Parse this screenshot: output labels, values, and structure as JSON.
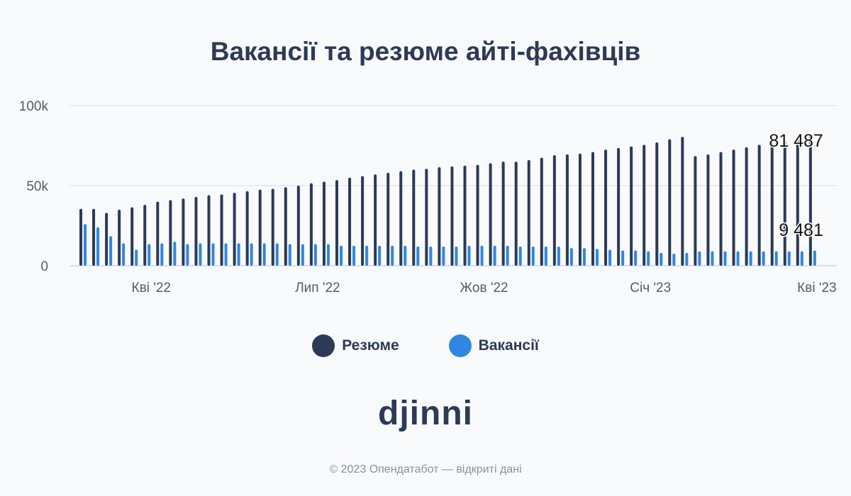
{
  "chart_data": {
    "type": "bar",
    "title": "Вакансії та резюме айті-фахівців",
    "xlabel": "",
    "ylabel": "",
    "ylim": [
      0,
      100000
    ],
    "y_ticks": [
      {
        "value": 0,
        "label": "0"
      },
      {
        "value": 50000,
        "label": "50k"
      },
      {
        "value": 100000,
        "label": "100k"
      }
    ],
    "x_ticks": [
      {
        "index": 5.5,
        "label": "Кві '22"
      },
      {
        "index": 18.5,
        "label": "Лип '22"
      },
      {
        "index": 31.5,
        "label": "Жов '22"
      },
      {
        "index": 44.5,
        "label": "Січ '23"
      },
      {
        "index": 57.5,
        "label": "Кві '23"
      }
    ],
    "grid": true,
    "legend_position": "bottom",
    "series": [
      {
        "name": "Резюме",
        "color": "#2c3a57",
        "values": [
          35500,
          35500,
          33000,
          35000,
          36500,
          38000,
          40000,
          41000,
          42000,
          43000,
          44000,
          44500,
          45500,
          46500,
          47500,
          48000,
          49000,
          50000,
          51500,
          52500,
          53500,
          55000,
          56000,
          57000,
          58000,
          59000,
          60000,
          60500,
          61500,
          62000,
          62500,
          63000,
          64000,
          65000,
          65000,
          66000,
          67500,
          69000,
          69500,
          70000,
          71000,
          72500,
          73500,
          74500,
          75500,
          77000,
          79000,
          80500,
          68500,
          69500,
          71000,
          72500,
          74000,
          75500,
          76500,
          78000,
          79000,
          81487
        ]
      },
      {
        "name": "Вакансії",
        "color": "#2f86e0",
        "values": [
          26000,
          24000,
          18500,
          14000,
          10000,
          13500,
          14000,
          15000,
          13500,
          14000,
          14000,
          14000,
          14000,
          14000,
          14000,
          14000,
          13500,
          13500,
          13500,
          13500,
          12500,
          12500,
          12500,
          12500,
          12500,
          12500,
          12000,
          12000,
          12000,
          12000,
          12500,
          12500,
          12500,
          12500,
          12000,
          12000,
          12000,
          12000,
          11000,
          11000,
          10500,
          10000,
          9500,
          9500,
          9000,
          8000,
          7500,
          8000,
          9000,
          9000,
          9000,
          9000,
          9000,
          9000,
          9000,
          9000,
          9000,
          9481
        ]
      }
    ],
    "end_labels": [
      "81 487",
      "9 481"
    ]
  },
  "legend": [
    {
      "label": "Резюме",
      "color": "#2c3a57"
    },
    {
      "label": "Вакансії",
      "color": "#2f86e0"
    }
  ],
  "logo_text": "djinni",
  "footer_text": "© 2023 Опендатабот — відкриті дані"
}
